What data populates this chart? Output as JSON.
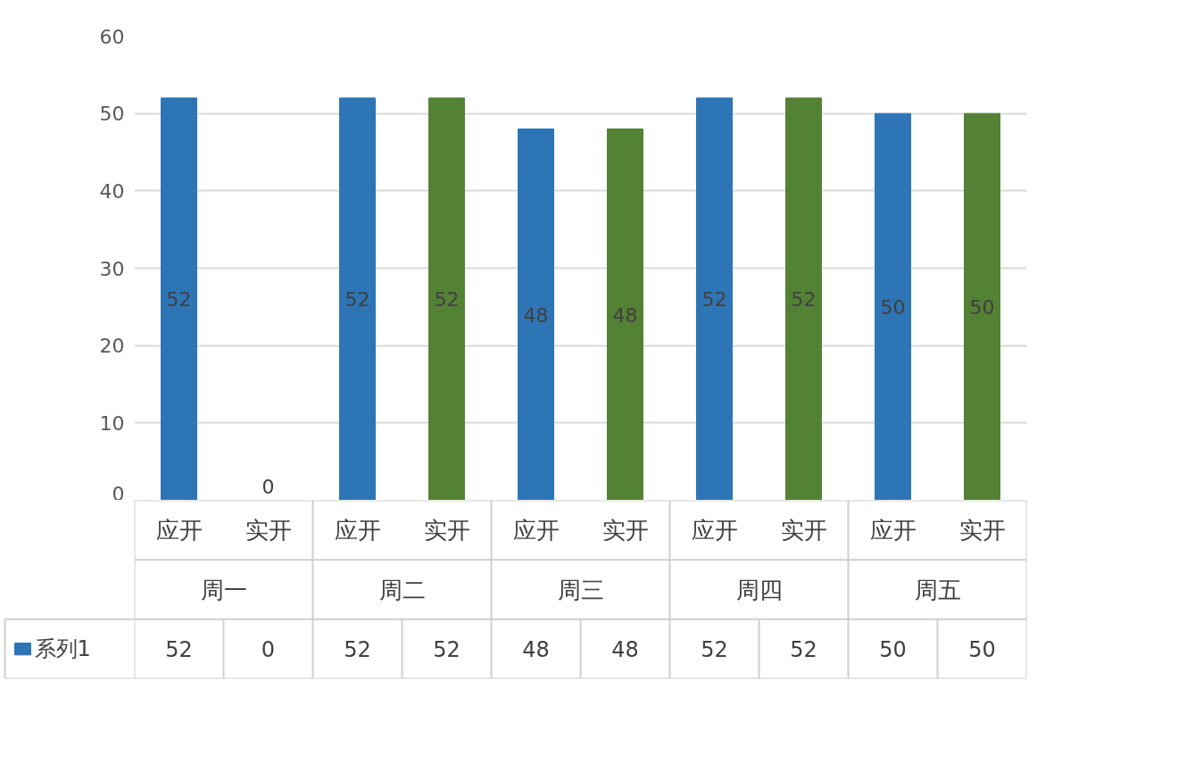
{
  "chart_data": {
    "type": "bar",
    "categories": [
      "应开",
      "实开",
      "应开",
      "实开",
      "应开",
      "实开",
      "应开",
      "实开",
      "应开",
      "实开"
    ],
    "series": [
      {
        "name": "系列1",
        "color": "#2e75b6",
        "colors": [
          "#2e75b6",
          "#548235",
          "#2e75b6",
          "#548235",
          "#2e75b6",
          "#548235",
          "#2e75b6",
          "#548235",
          "#2e75b6",
          "#548235"
        ],
        "values": [
          52,
          0,
          52,
          52,
          48,
          48,
          52,
          52,
          50,
          50
        ]
      }
    ],
    "annotations": [
      "周一",
      "周二",
      "周三",
      "周四",
      "周五",
      "52",
      "0",
      "52",
      "52",
      "48",
      "48",
      "52",
      "52",
      "50",
      "50"
    ],
    "ylim": [
      0,
      60
    ],
    "yticks": [
      0,
      10,
      20,
      30,
      40,
      50,
      60
    ],
    "grid": "y",
    "data_labels": true,
    "legend": "bottom"
  }
}
